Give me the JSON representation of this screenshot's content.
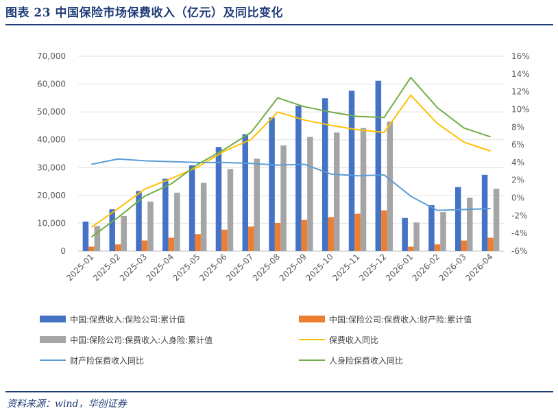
{
  "header": {
    "title": "图表 23   中国保险市场保费收入（亿元）及同比变化"
  },
  "footer": {
    "source": "资料来源：wind，华创证券"
  },
  "colors": {
    "total": "#4472c4",
    "property": "#ed7d31",
    "life": "#a5a5a5",
    "total_yoy": "#ffc000",
    "property_yoy": "#5b9bd5",
    "life_yoy": "#70ad47"
  },
  "chart_data": {
    "type": "bar+line",
    "categories": [
      "2025-01",
      "2025-02",
      "2025-03",
      "2025-04",
      "2025-05",
      "2025-06",
      "2025-07",
      "2025-08",
      "2025-09",
      "2025-10",
      "2025-11",
      "2025-12",
      "2026-01",
      "2026-02",
      "2026-03",
      "2026-04"
    ],
    "y_left": {
      "min": 0,
      "max": 70000,
      "step": 10000,
      "tick_labels": [
        "0",
        "10,000",
        "20,000",
        "30,000",
        "40,000",
        "50,000",
        "60,000",
        "70,000"
      ]
    },
    "y_right": {
      "min": -6,
      "max": 16,
      "step": 2,
      "tick_labels": [
        "-6%",
        "-4%",
        "-2%",
        "0%",
        "2%",
        "4%",
        "6%",
        "8%",
        "10%",
        "12%",
        "14%",
        "16%"
      ]
    },
    "bar_series": [
      {
        "name": "中国:保费收入:保险公司:累计值",
        "color_key": "total",
        "values": [
          10600,
          15000,
          21600,
          26000,
          30800,
          37400,
          42000,
          48000,
          52200,
          54900,
          57600,
          61200,
          11900,
          16500,
          23000,
          27400
        ]
      },
      {
        "name": "中国:保险公司:保费收入:财产险:累计值",
        "color_key": "property",
        "values": [
          1600,
          2400,
          3800,
          4800,
          6100,
          7700,
          8800,
          10100,
          11200,
          12200,
          13400,
          14600,
          1600,
          2400,
          3800,
          4800
        ]
      },
      {
        "name": "中国:保险公司:保费收入:人身险:累计值",
        "color_key": "life",
        "values": [
          9000,
          12600,
          17800,
          21000,
          24500,
          29500,
          33200,
          38000,
          41000,
          42600,
          44200,
          46500,
          10300,
          14000,
          19200,
          22400
        ]
      }
    ],
    "line_series": [
      {
        "name": "保费收入同比",
        "color_key": "total_yoy",
        "values": [
          -3.3,
          -1.2,
          1.0,
          2.2,
          3.5,
          5.3,
          6.6,
          9.7,
          8.8,
          8.2,
          7.7,
          7.4,
          11.6,
          8.4,
          6.3,
          5.3
        ]
      },
      {
        "name": "财产险保费收入同比",
        "color_key": "property_yoy",
        "values": [
          3.8,
          4.4,
          4.2,
          4.1,
          4.0,
          4.0,
          3.9,
          3.7,
          3.8,
          2.7,
          2.5,
          2.6,
          0.2,
          -1.4,
          -1.3,
          -1.2
        ]
      },
      {
        "name": "人身险保费收入同比",
        "color_key": "life_yoy",
        "values": [
          -4.4,
          -2.2,
          0.2,
          1.6,
          3.8,
          5.5,
          7.4,
          11.3,
          10.3,
          9.7,
          9.2,
          9.1,
          13.6,
          10.2,
          7.9,
          6.9
        ]
      }
    ]
  }
}
